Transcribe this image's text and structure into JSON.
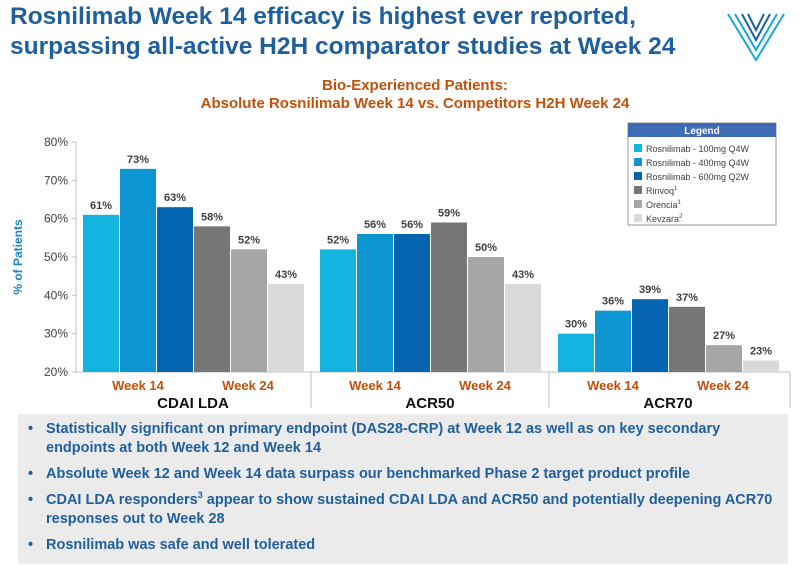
{
  "slide": {
    "title_line1": "Rosnilimab Week 14 efficacy is highest ever reported,",
    "title_line2": "surpassing all-active H2H comparator studies at Week 24"
  },
  "colors": {
    "title": "#1f5f9e",
    "subtitle": "#c0500a",
    "bullet_text": "#1f5f9e",
    "bullet_bg": "#ebebeb",
    "legend_header": "#3f6bb5"
  },
  "chart_data": {
    "type": "bar",
    "title": "Bio-Experienced Patients:",
    "subtitle": "Absolute Rosnilimab Week 14 vs. Competitors H2H Week 24",
    "ylabel": "% of Patients",
    "ylim": [
      20,
      80
    ],
    "yticks": [
      "20%",
      "30%",
      "40%",
      "50%",
      "60%",
      "70%",
      "80%"
    ],
    "grid": false,
    "legend": {
      "title": "Legend",
      "position": "top-right"
    },
    "categories": [
      "CDAI LDA",
      "ACR50",
      "ACR70"
    ],
    "week_labels": {
      "left": "Week 14",
      "right": "Week 24"
    },
    "series": [
      {
        "name": "Rosnilimab - 100mg Q4W",
        "sup": "",
        "color": "#14b4e0",
        "values": [
          61,
          52,
          30
        ],
        "labels": [
          "61%",
          "52%",
          "30%"
        ]
      },
      {
        "name": "Rosnilimab - 400mg Q4W",
        "sup": "",
        "color": "#0d95d2",
        "values": [
          73,
          56,
          36
        ],
        "labels": [
          "73%",
          "56%",
          "36%"
        ]
      },
      {
        "name": "Rosnilimab - 600mg Q2W",
        "sup": "",
        "color": "#0665b0",
        "values": [
          63,
          56,
          39
        ],
        "labels": [
          "63%",
          "56%",
          "39%"
        ]
      },
      {
        "name": "Rinvoq",
        "sup": "1",
        "color": "#767676",
        "values": [
          58,
          59,
          37
        ],
        "labels": [
          "58%",
          "59%",
          "37%"
        ]
      },
      {
        "name": "Orencia",
        "sup": "1",
        "color": "#a6a6a6",
        "values": [
          52,
          50,
          27
        ],
        "labels": [
          "52%",
          "50%",
          "27%"
        ]
      },
      {
        "name": "Kevzara",
        "sup": "2",
        "color": "#d9d9d9",
        "values": [
          43,
          43,
          23
        ],
        "labels": [
          "43%",
          "43%",
          "23%"
        ]
      }
    ]
  },
  "bullets": [
    {
      "parts": [
        {
          "t": "Statistically significant on primary endpoint (DAS28-CRP) at Week 12 as well as on key secondary endpoints at both Week 12 and Week 14"
        }
      ]
    },
    {
      "parts": [
        {
          "t": "Absolute Week 12 and Week 14 data surpass our benchmarked Phase 2 target product profile"
        }
      ]
    },
    {
      "parts": [
        {
          "t": "CDAI LDA responders"
        },
        {
          "sup": "3"
        },
        {
          "t": " appear to show sustained CDAI LDA and ACR50 and potentially deepening ACR70 responses out to Week 28"
        }
      ]
    },
    {
      "parts": [
        {
          "t": "Rosnilimab was safe and well tolerated"
        }
      ]
    }
  ],
  "bullet_marker": "•"
}
